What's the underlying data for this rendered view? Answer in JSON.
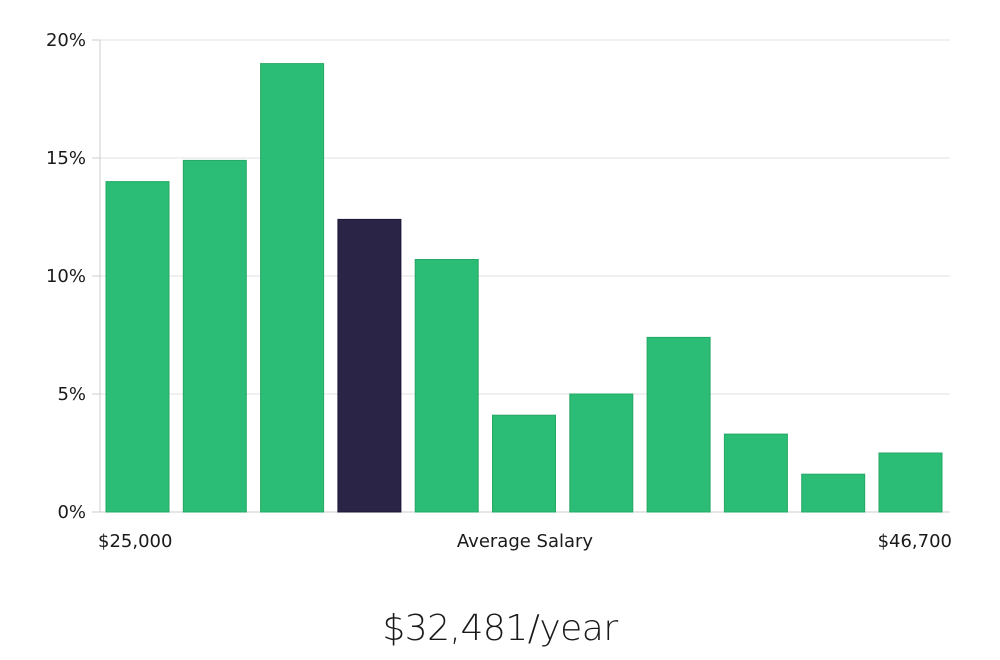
{
  "chart_data": {
    "type": "bar",
    "title": "",
    "xlabel": "Average Salary",
    "ylabel": "",
    "x_range_labels": {
      "min": "$25,000",
      "max": "$46,700"
    },
    "y_ticks": [
      0,
      5,
      10,
      15,
      20
    ],
    "y_tick_labels": [
      "0%",
      "5%",
      "10%",
      "15%",
      "20%"
    ],
    "ylim": [
      0,
      20
    ],
    "grid": true,
    "values": [
      14.0,
      14.9,
      19.0,
      12.4,
      10.7,
      4.1,
      5.0,
      7.4,
      3.3,
      1.6,
      2.5
    ],
    "highlight_index": 3,
    "colors": {
      "bar": "#2bbd75",
      "highlight": "#2a2546",
      "grid": "#e0e0e0",
      "axis": "#cccccc"
    }
  },
  "salary": {
    "value": "$32,481/year"
  }
}
